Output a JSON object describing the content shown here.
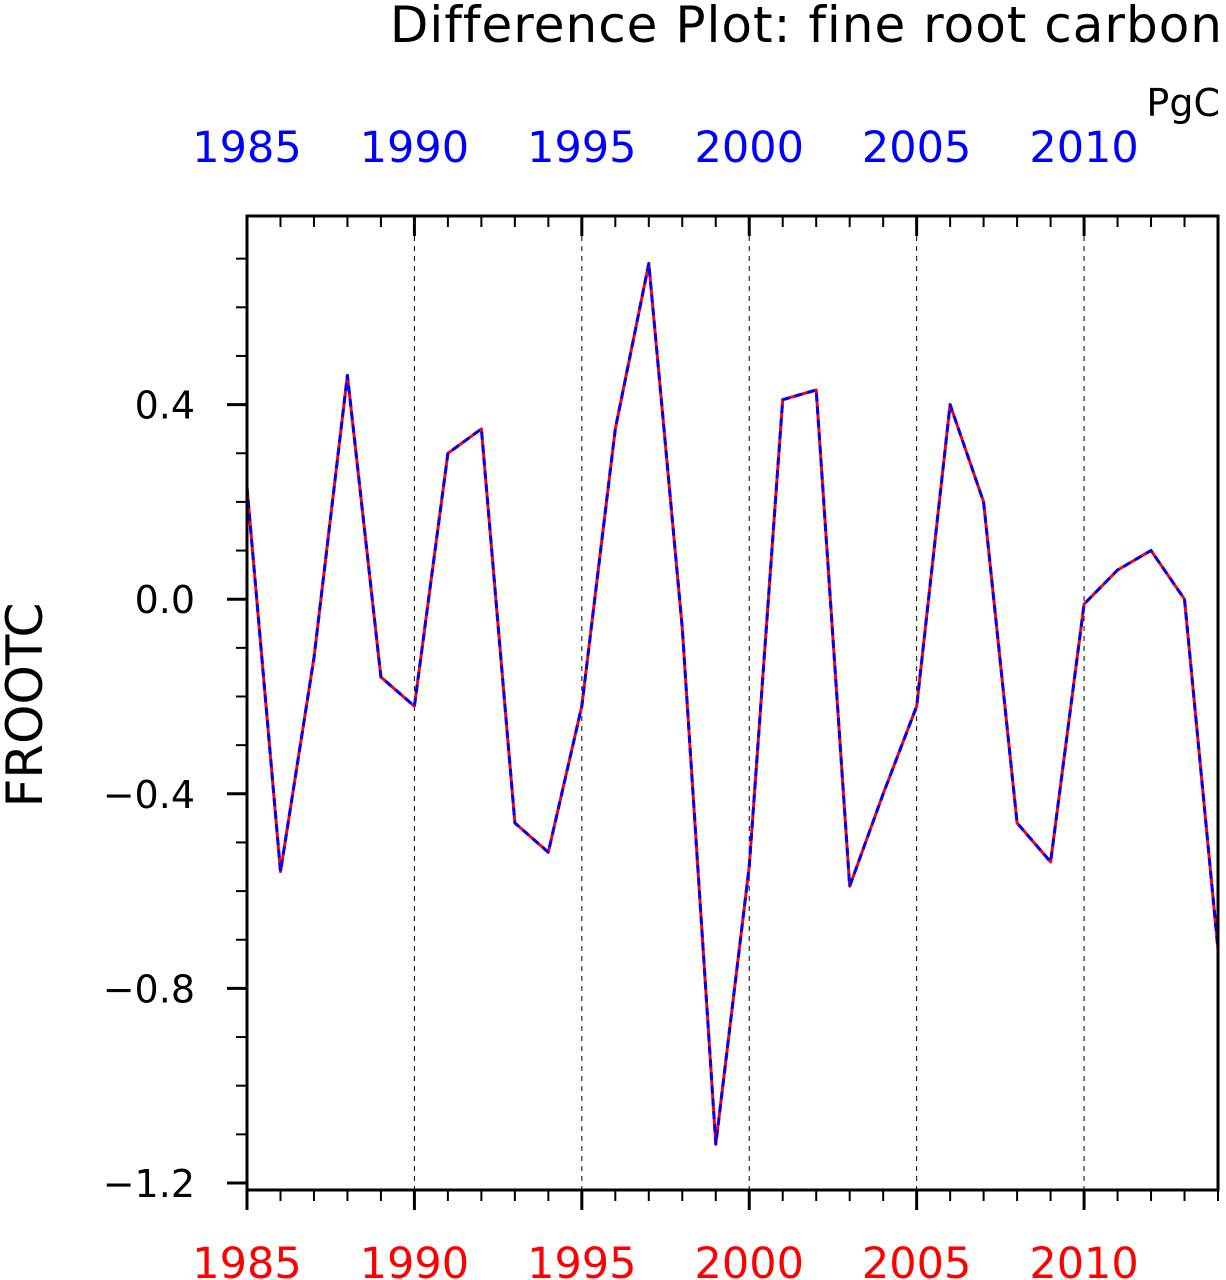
{
  "chart_data": {
    "type": "line",
    "title": "Difference Plot: fine root carbon",
    "units": "PgC",
    "ylabel": "FROOTC",
    "xlabel": "",
    "xlim": [
      1985,
      2014
    ],
    "ylim": [
      -1.2,
      0.8
    ],
    "xticks": [
      1985,
      1990,
      1995,
      2000,
      2005,
      2010
    ],
    "yticks": [
      -1.2,
      -0.8,
      -0.4,
      0.0,
      0.4
    ],
    "ytick_labels": [
      "−1.2",
      "−0.8",
      "−0.4",
      "0.0",
      "0.4"
    ],
    "xtick_labels_bottom": [
      "1985",
      "1990",
      "1995",
      "2000",
      "2005",
      "2010"
    ],
    "xtick_labels_top": [
      "1985",
      "1990",
      "1995",
      "2000",
      "2005",
      "2010"
    ],
    "x_minor_step": 1,
    "y_minor_step": 0.1,
    "vertical_grid": "dashed at major x ticks",
    "x": [
      1985,
      1986,
      1987,
      1988,
      1989,
      1990,
      1991,
      1992,
      1993,
      1994,
      1995,
      1996,
      1997,
      1998,
      1999,
      2000,
      2001,
      2002,
      2003,
      2004,
      2005,
      2006,
      2007,
      2008,
      2009,
      2010,
      2011,
      2012,
      2013,
      2014
    ],
    "series": [
      {
        "style": "solid",
        "color": "#ff0000",
        "values": [
          0.23,
          -0.56,
          -0.12,
          0.46,
          -0.16,
          -0.22,
          0.3,
          0.35,
          -0.46,
          -0.52,
          -0.22,
          0.35,
          0.69,
          -0.06,
          -1.12,
          -0.55,
          0.41,
          0.43,
          -0.59,
          -0.4,
          -0.22,
          0.4,
          0.2,
          -0.46,
          -0.54,
          -0.01,
          0.06,
          0.1,
          0.0,
          -0.72
        ]
      },
      {
        "style": "dashed",
        "color": "#0000ff",
        "values": [
          0.23,
          -0.56,
          -0.12,
          0.46,
          -0.16,
          -0.22,
          0.3,
          0.35,
          -0.46,
          -0.52,
          -0.22,
          0.35,
          0.69,
          -0.06,
          -1.12,
          -0.55,
          0.41,
          0.43,
          -0.59,
          -0.4,
          -0.22,
          0.4,
          0.2,
          -0.46,
          -0.54,
          -0.01,
          0.06,
          0.1,
          0.0,
          -0.72
        ]
      }
    ],
    "colors": {
      "bottom_axis_labels": "#ff0000",
      "top_axis_labels": "#0000ff",
      "frame": "#000000",
      "grid": "#000000"
    }
  }
}
